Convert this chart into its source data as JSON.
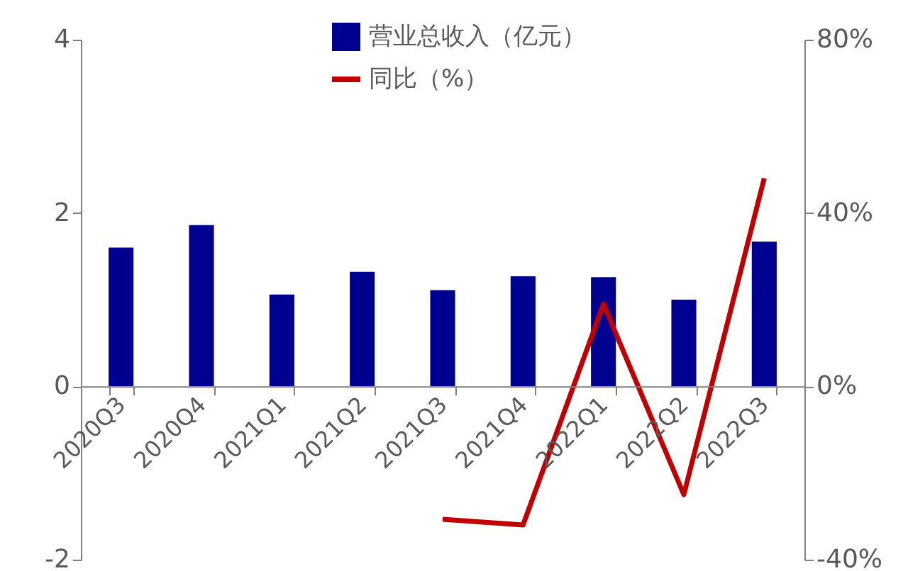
{
  "chart_data": {
    "type": "bar",
    "categories": [
      "2020Q3",
      "2020Q4",
      "2021Q1",
      "2021Q2",
      "2021Q3",
      "2021Q4",
      "2022Q1",
      "2022Q2",
      "2022Q3"
    ],
    "series": [
      {
        "name": "营业总收入（亿元）",
        "color": "#000090",
        "values": [
          1.6,
          1.86,
          1.06,
          1.32,
          1.11,
          1.27,
          1.26,
          1.0,
          1.67
        ]
      },
      {
        "name": "同比（%）",
        "type": "line",
        "axis": "y2",
        "color": "#c00000",
        "values": [
          null,
          null,
          null,
          null,
          -30.7,
          -32,
          19,
          -25,
          48
        ]
      }
    ],
    "ylim": [
      -2,
      4
    ],
    "yticks": [
      -2,
      0,
      2,
      4
    ],
    "y2lim": [
      -40,
      80
    ],
    "y2ticks": [
      {
        "value": -40,
        "label": "-40%"
      },
      {
        "value": 0,
        "label": "0%"
      },
      {
        "value": 40,
        "label": "40%"
      },
      {
        "value": 80,
        "label": "80%"
      }
    ],
    "grid": false,
    "legend": "top",
    "marker": "none",
    "line_style": "solid"
  }
}
